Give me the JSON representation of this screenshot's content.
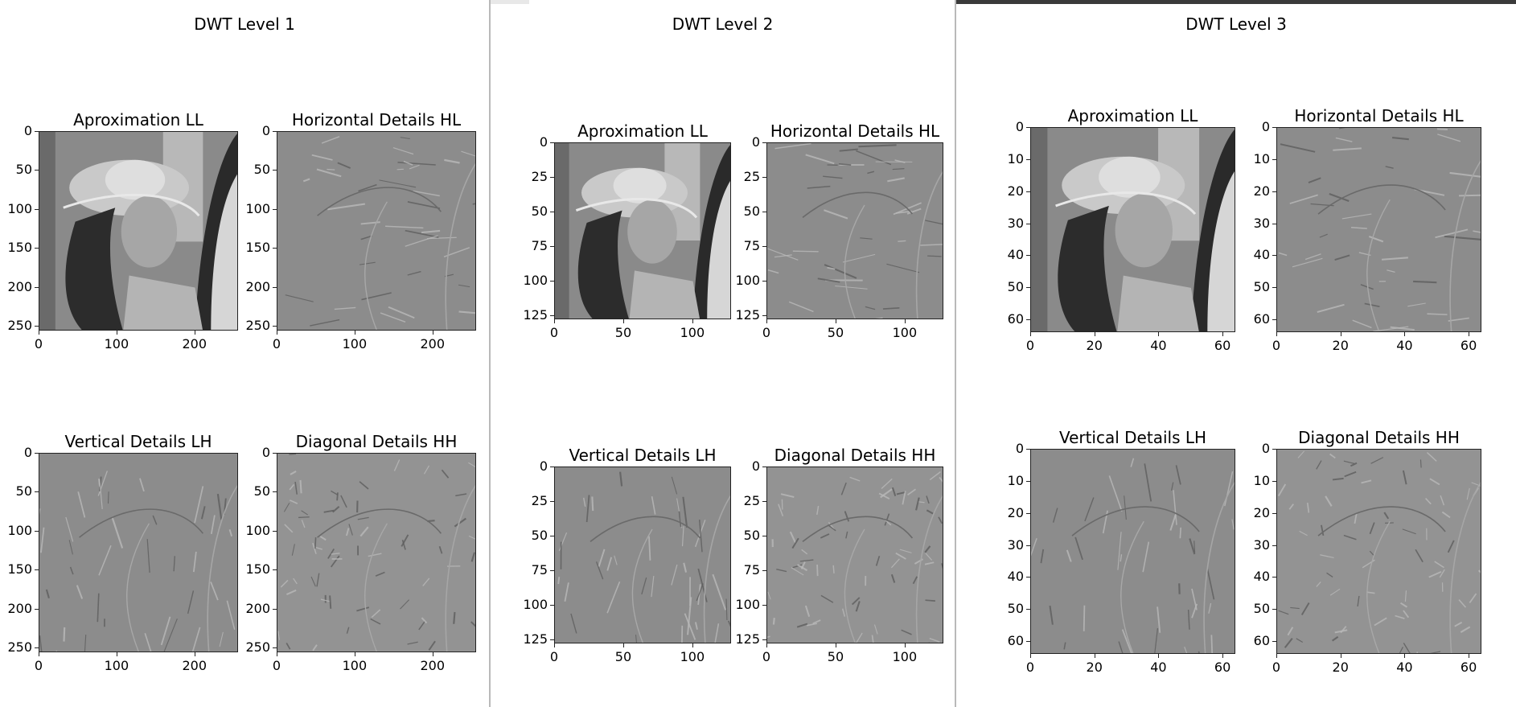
{
  "windows": [
    {
      "id": "win1",
      "title": "DWT Level 1",
      "xticks": [
        "0",
        "100",
        "200"
      ],
      "xtick_values": [
        0,
        100,
        200
      ],
      "yticks": [
        "0",
        "50",
        "100",
        "150",
        "200",
        "250"
      ],
      "ytick_values": [
        0,
        50,
        100,
        150,
        200,
        250
      ],
      "extent": 256,
      "panels": [
        {
          "title": "Aproximation LL",
          "kind": "approx"
        },
        {
          "title": "Horizontal Details HL",
          "kind": "horizontal"
        },
        {
          "title": "Vertical Details LH",
          "kind": "vertical"
        },
        {
          "title": "Diagonal Details HH",
          "kind": "diagonal"
        }
      ]
    },
    {
      "id": "win2",
      "title": "DWT Level 2",
      "xticks": [
        "0",
        "50",
        "100"
      ],
      "xtick_values": [
        0,
        50,
        100
      ],
      "yticks": [
        "0",
        "25",
        "50",
        "75",
        "100",
        "125"
      ],
      "ytick_values": [
        0,
        25,
        50,
        75,
        100,
        125
      ],
      "extent": 128,
      "panels": [
        {
          "title": "Aproximation LL",
          "kind": "approx"
        },
        {
          "title": "Horizontal Details HL",
          "kind": "horizontal"
        },
        {
          "title": "Vertical Details LH",
          "kind": "vertical"
        },
        {
          "title": "Diagonal Details HH",
          "kind": "diagonal"
        }
      ]
    },
    {
      "id": "win3",
      "title": "DWT Level 3",
      "xticks": [
        "0",
        "20",
        "40",
        "60"
      ],
      "xtick_values": [
        0,
        20,
        40,
        60
      ],
      "yticks": [
        "0",
        "10",
        "20",
        "30",
        "40",
        "50",
        "60"
      ],
      "ytick_values": [
        0,
        10,
        20,
        30,
        40,
        50,
        60
      ],
      "extent": 64,
      "panels": [
        {
          "title": "Aproximation LL",
          "kind": "approx"
        },
        {
          "title": "Horizontal Details HL",
          "kind": "horizontal"
        },
        {
          "title": "Vertical Details LH",
          "kind": "vertical"
        },
        {
          "title": "Diagonal Details HH",
          "kind": "diagonal"
        }
      ]
    }
  ],
  "chart_data": [
    {
      "type": "heatmap",
      "title": "DWT Level 1",
      "xlim": [
        0,
        256
      ],
      "ylim": [
        256,
        0
      ],
      "subplots": [
        "Aproximation LL",
        "Horizontal Details HL",
        "Vertical Details LH",
        "Diagonal Details HH"
      ]
    },
    {
      "type": "heatmap",
      "title": "DWT Level 2",
      "xlim": [
        0,
        128
      ],
      "ylim": [
        128,
        0
      ],
      "subplots": [
        "Aproximation LL",
        "Horizontal Details HL",
        "Vertical Details LH",
        "Diagonal Details HH"
      ]
    },
    {
      "type": "heatmap",
      "title": "DWT Level 3",
      "xlim": [
        0,
        64
      ],
      "ylim": [
        64,
        0
      ],
      "subplots": [
        "Aproximation LL",
        "Horizontal Details HL",
        "Vertical Details LH",
        "Diagonal Details HH"
      ]
    }
  ],
  "colors": {
    "approx_bg": "#8a8a8a",
    "detail_bg": "#8c8c8c",
    "diag_bg": "#939393",
    "window3_topbar": "#3a3a3a"
  }
}
